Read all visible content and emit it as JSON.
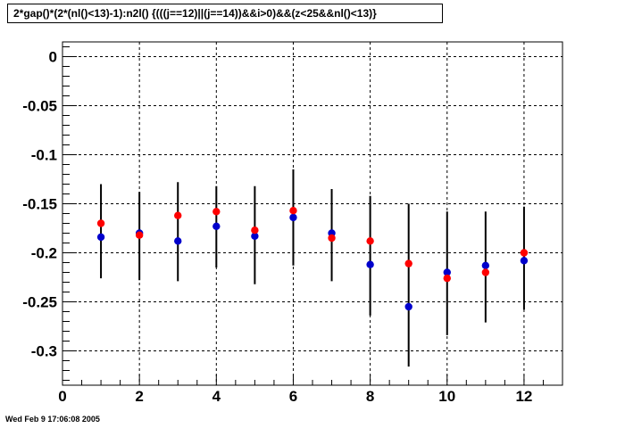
{
  "header": {
    "title": "2*gap()*(2*(nl()<13)-1):n2l() {(((j==12)||(j==14))&&i>0)&&(z<25&&nl()<13)}"
  },
  "footer": {
    "timestamp": "Wed Feb  9 17:06:08 2005"
  },
  "chart_data": {
    "type": "scatter",
    "title": "2*gap()*(2*(nl()<13)-1):n2l() {(((j==12)||(j==14))&&i>0)&&(z<25&&nl()<13)}",
    "xlabel": "",
    "ylabel": "",
    "xlim": [
      0,
      13
    ],
    "ylim": [
      -0.335,
      0.015
    ],
    "grid": true,
    "x_ticks": [
      0,
      2,
      4,
      6,
      8,
      10,
      12
    ],
    "x_tick_labels": [
      "0",
      "2",
      "4",
      "6",
      "8",
      "10",
      "12"
    ],
    "y_ticks": [
      0,
      -0.05,
      -0.1,
      -0.15,
      -0.2,
      -0.25,
      -0.3
    ],
    "y_tick_labels": [
      "0",
      "-0.05",
      "-0.1",
      "-0.15",
      "-0.2",
      "-0.25",
      "-0.3"
    ],
    "series": [
      {
        "color": "#0000cc",
        "x": [
          1,
          2,
          3,
          4,
          5,
          6,
          7,
          8,
          9,
          10,
          11,
          12
        ],
        "y": [
          -0.184,
          -0.18,
          -0.188,
          -0.173,
          -0.183,
          -0.164,
          -0.18,
          -0.212,
          -0.255,
          -0.22,
          -0.213,
          -0.208
        ],
        "err_low": [
          -0.226,
          -0.228,
          -0.229,
          -0.215,
          -0.232,
          -0.213,
          -0.229,
          -0.264,
          -0.316,
          -0.284,
          -0.271,
          -0.258
        ],
        "err_high": [
          -0.13,
          -0.138,
          -0.128,
          -0.132,
          -0.132,
          -0.115,
          -0.135,
          -0.142,
          -0.15,
          -0.158,
          -0.158,
          -0.153
        ]
      },
      {
        "color": "#ff0000",
        "x": [
          1,
          2,
          3,
          4,
          5,
          6,
          7,
          8,
          9,
          10,
          11,
          12
        ],
        "y": [
          -0.17,
          -0.182,
          -0.162,
          -0.158,
          -0.177,
          -0.157,
          -0.185,
          -0.188,
          -0.211,
          -0.226,
          -0.22,
          -0.2
        ]
      }
    ]
  }
}
